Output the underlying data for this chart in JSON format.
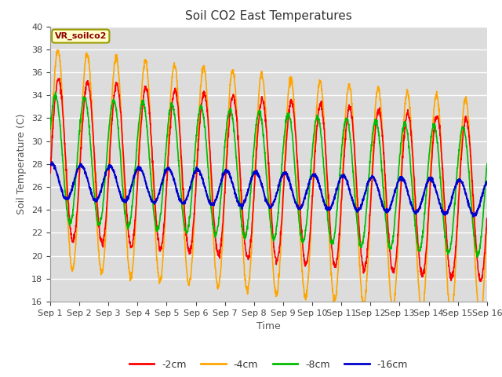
{
  "title": "Soil CO2 East Temperatures",
  "xlabel": "Time",
  "ylabel": "Soil Temperature (C)",
  "ylim": [
    16,
    40
  ],
  "yticks": [
    16,
    18,
    20,
    22,
    24,
    26,
    28,
    30,
    32,
    34,
    36,
    38,
    40
  ],
  "colors": {
    "-2cm": "#FF0000",
    "-4cm": "#FFA500",
    "-8cm": "#00BB00",
    "-16cm": "#0000CC"
  },
  "legend_label": "VR_soilco2",
  "background_color": "#DCDCDC",
  "figure_bg": "#FFFFFF",
  "grid_color": "#FFFFFF",
  "title_fontsize": 11,
  "axis_label_fontsize": 9,
  "tick_fontsize": 8,
  "series_params": {
    "-2cm": {
      "mean": 28.5,
      "amplitude": 7.0,
      "phase": -0.2,
      "trend": -0.25,
      "noise": 0.15
    },
    "-4cm": {
      "mean": 28.5,
      "amplitude": 9.5,
      "phase": -0.1,
      "trend": -0.3,
      "noise": 0.15
    },
    "-8cm": {
      "mean": 28.5,
      "amplitude": 5.5,
      "phase": 0.45,
      "trend": -0.2,
      "noise": 0.12
    },
    "-16cm": {
      "mean": 26.5,
      "amplitude": 1.5,
      "phase": 1.2,
      "trend": -0.1,
      "noise": 0.08
    }
  }
}
